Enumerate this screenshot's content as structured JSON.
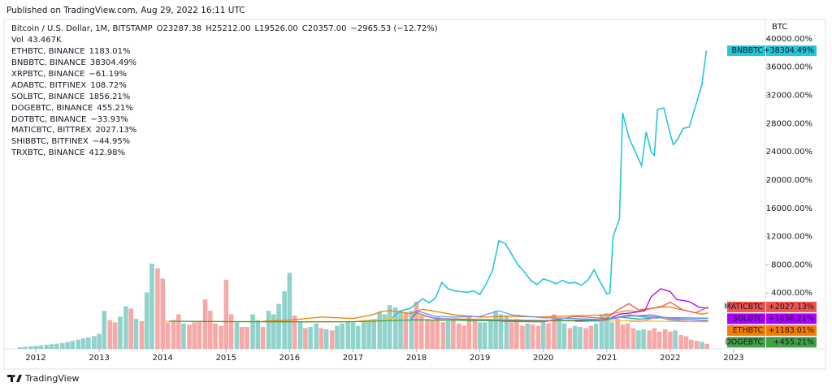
{
  "header": {
    "published": "Published on TradingView.com, Aug 29, 2022 16:11 UTC"
  },
  "footer": {
    "brand": "TradingView"
  },
  "chart_data": {
    "type": "line",
    "axis_unit": "BTC",
    "main_symbol": {
      "name": "Bitcoin / U.S. Dollar, 1M, BITSTAMP",
      "stats": [
        "O23287.38",
        "H25212.00",
        "L19526.00",
        "C20357.00",
        "−2965.53 (−12.72%)"
      ],
      "stats_color": "#ef5350",
      "volume_label": "Vol",
      "volume_value_label": "43.467K"
    },
    "xlim": [
      2011.5,
      2023.5
    ],
    "xticks": [
      2012,
      2013,
      2014,
      2015,
      2016,
      2017,
      2018,
      2019,
      2020,
      2021,
      2022,
      2023
    ],
    "ylim": [
      -3900,
      40900
    ],
    "yticks": [
      {
        "value": 4000,
        "label": "4000.00%"
      },
      {
        "value": 8000,
        "label": "8000.00%"
      },
      {
        "value": 12000,
        "label": "12000.00%"
      },
      {
        "value": 16000,
        "label": "16000.00%"
      },
      {
        "value": 20000,
        "label": "20000.00%"
      },
      {
        "value": 24000,
        "label": "24000.00%"
      },
      {
        "value": 28000,
        "label": "28000.00%"
      },
      {
        "value": 32000,
        "label": "32000.00%"
      },
      {
        "value": 36000,
        "label": "36000.00%"
      },
      {
        "value": 40000,
        "label": "40000.00%"
      }
    ],
    "series": [
      {
        "name": "ETHBTC",
        "legend": "ETHBTC, BINANCE",
        "color": "#f57c00",
        "change_label": "1183.01%",
        "tag_label": "+1183.01%",
        "x": [
          2015.58,
          2016.0,
          2016.5,
          2017.0,
          2017.3,
          2017.45,
          2017.6,
          2017.9,
          2018.1,
          2018.3,
          2018.6,
          2019.0,
          2019.5,
          2020.0,
          2020.5,
          2021.0,
          2021.3,
          2021.5,
          2021.85,
          2022.0,
          2022.3,
          2022.5,
          2022.6
        ],
        "values": [
          0,
          150,
          600,
          400,
          900,
          1400,
          1500,
          1100,
          1700,
          1400,
          900,
          600,
          700,
          600,
          800,
          900,
          1500,
          1400,
          2100,
          2000,
          1400,
          1000,
          1183.01
        ]
      },
      {
        "name": "BNBBTC",
        "legend": "BNBBTC, BINANCE",
        "color": "#26c6da",
        "change_label": "38304.49%",
        "tag_label": "+38304.49%",
        "x": [
          2017.6,
          2017.75,
          2017.9,
          2018.0,
          2018.1,
          2018.2,
          2018.3,
          2018.4,
          2018.5,
          2018.6,
          2018.7,
          2018.8,
          2018.9,
          2019.0,
          2019.1,
          2019.2,
          2019.3,
          2019.4,
          2019.5,
          2019.6,
          2019.7,
          2019.8,
          2019.9,
          2020.0,
          2020.1,
          2020.2,
          2020.3,
          2020.4,
          2020.5,
          2020.6,
          2020.7,
          2020.8,
          2020.9,
          2021.0,
          2021.05,
          2021.1,
          2021.2,
          2021.25,
          2021.35,
          2021.45,
          2021.55,
          2021.62,
          2021.7,
          2021.75,
          2021.8,
          2021.9,
          2022.0,
          2022.05,
          2022.12,
          2022.2,
          2022.3,
          2022.4,
          2022.5,
          2022.57
        ],
        "values": [
          300,
          1500,
          1800,
          2500,
          3200,
          2600,
          3300,
          5500,
          4600,
          4300,
          4200,
          4100,
          4300,
          3800,
          5300,
          7200,
          11400,
          11000,
          9500,
          8000,
          7000,
          5800,
          5200,
          6000,
          5700,
          5300,
          5800,
          5400,
          5500,
          5100,
          5800,
          7300,
          5500,
          3900,
          4000,
          12000,
          14500,
          29500,
          26000,
          24000,
          22000,
          26800,
          24000,
          23500,
          30000,
          30200,
          26500,
          25000,
          25800,
          27300,
          27500,
          30500,
          33500,
          38304.49
        ]
      },
      {
        "name": "XRPBTC",
        "legend": "XRPBTC, BINANCE",
        "color": "#fbc02d",
        "change_label": "−61.19%",
        "x": [
          2014.0,
          2015.0,
          2016.0,
          2017.0,
          2017.3,
          2017.5,
          2018.0,
          2018.3,
          2019.0,
          2020.0,
          2021.0,
          2021.3,
          2022.0,
          2022.6
        ],
        "values": [
          0,
          -40,
          -60,
          -50,
          200,
          300,
          900,
          400,
          300,
          100,
          -20,
          100,
          -30,
          -61.19
        ]
      },
      {
        "name": "ADABTC",
        "legend": "ADABTC, BITFINEX",
        "color": "#8e6fd8",
        "change_label": "108.72%",
        "x": [
          2017.9,
          2018.0,
          2018.3,
          2019.0,
          2020.0,
          2021.0,
          2021.3,
          2021.7,
          2022.0,
          2022.6
        ],
        "values": [
          0,
          1200,
          400,
          200,
          100,
          200,
          700,
          900,
          400,
          108.72
        ]
      },
      {
        "name": "SOLBTC",
        "legend": "SOLBTC, BINANCE",
        "color": "#aa00ff",
        "change_label": "1856.21%",
        "tag_label": "+1856.21%",
        "x": [
          2020.5,
          2020.8,
          2021.0,
          2021.2,
          2021.4,
          2021.6,
          2021.7,
          2021.85,
          2022.0,
          2022.1,
          2022.3,
          2022.45,
          2022.6
        ],
        "values": [
          0,
          100,
          200,
          1000,
          1200,
          1500,
          3500,
          4600,
          4200,
          3100,
          2800,
          2000,
          1856.21
        ]
      },
      {
        "name": "DOGEBTC",
        "legend": "DOGEBTC, BINANCE",
        "color": "#43a047",
        "change_label": "455.21%",
        "tag_label": "+455.21%",
        "x": [
          2014.1,
          2015.0,
          2016.0,
          2017.0,
          2018.0,
          2019.0,
          2020.0,
          2021.0,
          2021.35,
          2021.6,
          2022.0,
          2022.6
        ],
        "values": [
          0,
          -50,
          -70,
          -60,
          200,
          100,
          50,
          200,
          900,
          600,
          500,
          455.21
        ]
      },
      {
        "name": "DOTBTC",
        "legend": "DOTBTC, BINANCE",
        "color": "#26a69a",
        "change_label": "−33.93%",
        "x": [
          2020.65,
          2020.9,
          2021.2,
          2021.5,
          2021.85,
          2022.0,
          2022.3,
          2022.6
        ],
        "values": [
          0,
          200,
          600,
          300,
          500,
          200,
          -20,
          -33.93
        ]
      },
      {
        "name": "MATICBTC",
        "legend": "MATICBTC, BITTREX",
        "color": "#ef5350",
        "change_label": "2027.13%",
        "tag_label": "+2027.13%",
        "x": [
          2019.33,
          2019.6,
          2020.0,
          2020.5,
          2021.0,
          2021.15,
          2021.35,
          2021.5,
          2021.85,
          2022.0,
          2022.2,
          2022.4,
          2022.6
        ],
        "values": [
          0,
          -50,
          -80,
          700,
          400,
          1500,
          2500,
          1600,
          2000,
          2700,
          1600,
          1200,
          2027.13
        ]
      },
      {
        "name": "SHIBBTC",
        "legend": "SHIBBTC, BITFINEX",
        "color": "#f48fb1",
        "change_label": "−44.95%",
        "x": [
          2021.35,
          2021.55,
          2021.8,
          2022.0,
          2022.3,
          2022.6
        ],
        "values": [
          0,
          -20,
          600,
          300,
          -30,
          -44.95
        ]
      },
      {
        "name": "TRXBTC",
        "legend": "TRXBTC, BINANCE",
        "color": "#5b9cf6",
        "change_label": "412.98%",
        "x": [
          2017.9,
          2018.0,
          2018.3,
          2018.6,
          2019.0,
          2019.3,
          2019.5,
          2020.0,
          2020.5,
          2021.0,
          2021.3,
          2022.0,
          2022.6
        ],
        "values": [
          0,
          1500,
          700,
          600,
          700,
          1500,
          900,
          500,
          400,
          200,
          800,
          500,
          412.98
        ]
      }
    ],
    "volume": {
      "up_color": "#26a69a",
      "down_color": "#ef5350",
      "x": [
        2011.75,
        2011.83,
        2011.92,
        2012.0,
        2012.08,
        2012.17,
        2012.25,
        2012.33,
        2012.42,
        2012.5,
        2012.58,
        2012.67,
        2012.75,
        2012.83,
        2012.92,
        2013.0,
        2013.08,
        2013.17,
        2013.25,
        2013.33,
        2013.42,
        2013.5,
        2013.58,
        2013.67,
        2013.75,
        2013.83,
        2013.92,
        2014.0,
        2014.08,
        2014.17,
        2014.25,
        2014.33,
        2014.42,
        2014.5,
        2014.58,
        2014.67,
        2014.75,
        2014.83,
        2014.92,
        2015.0,
        2015.08,
        2015.17,
        2015.25,
        2015.33,
        2015.42,
        2015.5,
        2015.58,
        2015.67,
        2015.75,
        2015.83,
        2015.92,
        2016.0,
        2016.08,
        2016.17,
        2016.25,
        2016.33,
        2016.42,
        2016.5,
        2016.58,
        2016.67,
        2016.75,
        2016.83,
        2016.92,
        2017.0,
        2017.08,
        2017.17,
        2017.25,
        2017.33,
        2017.42,
        2017.5,
        2017.58,
        2017.67,
        2017.75,
        2017.83,
        2017.92,
        2018.0,
        2018.08,
        2018.17,
        2018.25,
        2018.33,
        2018.42,
        2018.5,
        2018.58,
        2018.67,
        2018.75,
        2018.83,
        2018.92,
        2019.0,
        2019.08,
        2019.17,
        2019.25,
        2019.33,
        2019.42,
        2019.5,
        2019.58,
        2019.67,
        2019.75,
        2019.83,
        2019.92,
        2020.0,
        2020.08,
        2020.17,
        2020.25,
        2020.33,
        2020.42,
        2020.5,
        2020.58,
        2020.67,
        2020.75,
        2020.83,
        2020.92,
        2021.0,
        2021.08,
        2021.17,
        2021.25,
        2021.33,
        2021.42,
        2021.5,
        2021.58,
        2021.67,
        2021.75,
        2021.83,
        2021.92,
        2022.0,
        2022.08,
        2022.17,
        2022.25,
        2022.33,
        2022.42,
        2022.5,
        2022.58
      ],
      "values": [
        14,
        18,
        22,
        25,
        30,
        35,
        40,
        45,
        50,
        60,
        70,
        80,
        90,
        100,
        110,
        130,
        330,
        250,
        230,
        280,
        370,
        350,
        260,
        240,
        490,
        740,
        700,
        610,
        230,
        250,
        300,
        220,
        210,
        230,
        240,
        430,
        330,
        220,
        200,
        600,
        300,
        230,
        190,
        190,
        300,
        250,
        190,
        330,
        300,
        390,
        500,
        660,
        290,
        230,
        180,
        190,
        220,
        180,
        170,
        160,
        200,
        220,
        240,
        230,
        200,
        250,
        250,
        260,
        320,
        300,
        380,
        360,
        330,
        320,
        330,
        410,
        290,
        260,
        250,
        280,
        230,
        240,
        250,
        220,
        200,
        280,
        260,
        230,
        230,
        240,
        330,
        300,
        290,
        230,
        260,
        200,
        220,
        210,
        200,
        230,
        220,
        300,
        270,
        220,
        180,
        200,
        190,
        180,
        200,
        220,
        300,
        310,
        230,
        260,
        210,
        220,
        180,
        160,
        170,
        160,
        180,
        150,
        170,
        150,
        160,
        120,
        110,
        80,
        70,
        60,
        43.467
      ],
      "up": [
        true,
        true,
        true,
        true,
        true,
        true,
        true,
        true,
        true,
        true,
        true,
        true,
        true,
        true,
        true,
        true,
        true,
        false,
        false,
        true,
        true,
        false,
        true,
        false,
        true,
        true,
        false,
        false,
        false,
        false,
        false,
        true,
        false,
        false,
        false,
        false,
        false,
        false,
        false,
        false,
        false,
        true,
        false,
        false,
        true,
        true,
        false,
        true,
        true,
        true,
        true,
        true,
        false,
        true,
        false,
        true,
        true,
        false,
        true,
        false,
        true,
        true,
        true,
        true,
        true,
        true,
        true,
        true,
        true,
        true,
        true,
        true,
        true,
        false,
        true,
        false,
        false,
        false,
        false,
        false,
        false,
        true,
        false,
        false,
        false,
        false,
        false,
        true,
        true,
        true,
        true,
        true,
        true,
        false,
        false,
        false,
        true,
        false,
        false,
        true,
        false,
        false,
        true,
        true,
        false,
        true,
        true,
        false,
        false,
        true,
        true,
        true,
        true,
        false,
        false,
        false,
        false,
        true,
        true,
        false,
        false,
        false,
        false,
        false,
        true,
        false,
        false,
        false,
        false,
        true,
        false
      ]
    }
  }
}
